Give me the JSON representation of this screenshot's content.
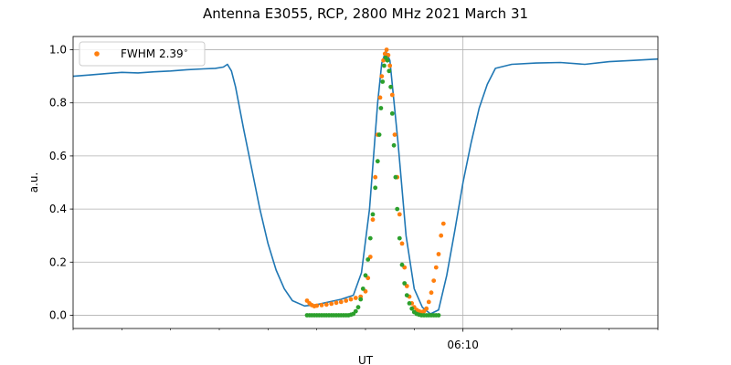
{
  "chart_data": {
    "type": "line",
    "title": "Antenna E3055, RCP, 2800 MHz 2021 March 31",
    "xlabel": "UT",
    "ylabel": "a.u.",
    "xlim": [
      "06:02",
      "06:14"
    ],
    "ylim": [
      -0.05,
      1.05
    ],
    "x_major_ticks": [
      {
        "t": "06:10",
        "label": "06:10"
      }
    ],
    "x_minor_ticks": [
      "06:02",
      "06:03",
      "06:04",
      "06:05",
      "06:06",
      "06:07",
      "06:08",
      "06:09",
      "06:11",
      "06:12",
      "06:13",
      "06:14"
    ],
    "y_ticks": [
      0.0,
      0.2,
      0.4,
      0.6,
      0.8,
      1.0
    ],
    "y_tick_labels": [
      "0.0",
      "0.2",
      "0.4",
      "0.6",
      "0.8",
      "1.0"
    ],
    "grid": true,
    "legend": {
      "position": "top-left",
      "entries": [
        {
          "label": "FWHM 2.39$^\\circ$",
          "display": "FWHM 2.39",
          "superscript": "∘",
          "color": "#ff7f0e",
          "marker": "dot"
        }
      ]
    },
    "series": [
      {
        "color": "#1f77b4",
        "style": "line",
        "points": [
          [
            "06:02:00",
            0.9
          ],
          [
            "06:02:20",
            0.905
          ],
          [
            "06:02:40",
            0.91
          ],
          [
            "06:03:00",
            0.915
          ],
          [
            "06:03:20",
            0.913
          ],
          [
            "06:03:40",
            0.917
          ],
          [
            "06:04:00",
            0.92
          ],
          [
            "06:04:20",
            0.925
          ],
          [
            "06:04:40",
            0.928
          ],
          [
            "06:04:55",
            0.93
          ],
          [
            "06:05:05",
            0.935
          ],
          [
            "06:05:10",
            0.945
          ],
          [
            "06:05:15",
            0.92
          ],
          [
            "06:05:20",
            0.86
          ],
          [
            "06:05:30",
            0.7
          ],
          [
            "06:05:40",
            0.55
          ],
          [
            "06:05:50",
            0.4
          ],
          [
            "06:06:00",
            0.27
          ],
          [
            "06:06:10",
            0.17
          ],
          [
            "06:06:20",
            0.1
          ],
          [
            "06:06:30",
            0.055
          ],
          [
            "06:06:45",
            0.035
          ],
          [
            "06:07:00",
            0.04
          ],
          [
            "06:07:15",
            0.05
          ],
          [
            "06:07:30",
            0.06
          ],
          [
            "06:07:45",
            0.075
          ],
          [
            "06:07:55",
            0.16
          ],
          [
            "06:08:05",
            0.4
          ],
          [
            "06:08:15",
            0.8
          ],
          [
            "06:08:20",
            0.95
          ],
          [
            "06:08:25",
            0.995
          ],
          [
            "06:08:30",
            0.96
          ],
          [
            "06:08:40",
            0.65
          ],
          [
            "06:08:50",
            0.3
          ],
          [
            "06:09:00",
            0.1
          ],
          [
            "06:09:10",
            0.03
          ],
          [
            "06:09:20",
            0.005
          ],
          [
            "06:09:30",
            0.02
          ],
          [
            "06:09:40",
            0.15
          ],
          [
            "06:09:50",
            0.32
          ],
          [
            "06:10:00",
            0.5
          ],
          [
            "06:10:10",
            0.65
          ],
          [
            "06:10:20",
            0.78
          ],
          [
            "06:10:30",
            0.87
          ],
          [
            "06:10:40",
            0.93
          ],
          [
            "06:11:00",
            0.945
          ],
          [
            "06:11:30",
            0.95
          ],
          [
            "06:12:00",
            0.952
          ],
          [
            "06:12:30",
            0.945
          ],
          [
            "06:13:00",
            0.955
          ],
          [
            "06:13:30",
            0.96
          ],
          [
            "06:14:00",
            0.965
          ]
        ]
      },
      {
        "color": "#ff7f0e",
        "style": "dots",
        "points": [
          [
            "06:06:48",
            0.055
          ],
          [
            "06:06:51",
            0.045
          ],
          [
            "06:06:54",
            0.038
          ],
          [
            "06:06:57",
            0.034
          ],
          [
            "06:07:00",
            0.036
          ],
          [
            "06:07:06",
            0.038
          ],
          [
            "06:07:12",
            0.04
          ],
          [
            "06:07:18",
            0.043
          ],
          [
            "06:07:24",
            0.047
          ],
          [
            "06:07:30",
            0.05
          ],
          [
            "06:07:36",
            0.055
          ],
          [
            "06:07:42",
            0.06
          ],
          [
            "06:07:48",
            0.065
          ],
          [
            "06:07:54",
            0.07
          ],
          [
            "06:08:00",
            0.09
          ],
          [
            "06:08:03",
            0.14
          ],
          [
            "06:08:06",
            0.22
          ],
          [
            "06:08:09",
            0.36
          ],
          [
            "06:08:12",
            0.52
          ],
          [
            "06:08:15",
            0.68
          ],
          [
            "06:08:18",
            0.82
          ],
          [
            "06:08:20",
            0.9
          ],
          [
            "06:08:22",
            0.96
          ],
          [
            "06:08:24",
            0.985
          ],
          [
            "06:08:26",
            1.0
          ],
          [
            "06:08:28",
            0.98
          ],
          [
            "06:08:30",
            0.94
          ],
          [
            "06:08:33",
            0.83
          ],
          [
            "06:08:36",
            0.68
          ],
          [
            "06:08:39",
            0.52
          ],
          [
            "06:08:42",
            0.38
          ],
          [
            "06:08:45",
            0.27
          ],
          [
            "06:08:48",
            0.18
          ],
          [
            "06:08:51",
            0.11
          ],
          [
            "06:08:54",
            0.07
          ],
          [
            "06:08:57",
            0.045
          ],
          [
            "06:09:00",
            0.03
          ],
          [
            "06:09:03",
            0.02
          ],
          [
            "06:09:06",
            0.015
          ],
          [
            "06:09:09",
            0.012
          ],
          [
            "06:09:12",
            0.015
          ],
          [
            "06:09:15",
            0.025
          ],
          [
            "06:09:18",
            0.05
          ],
          [
            "06:09:21",
            0.085
          ],
          [
            "06:09:24",
            0.13
          ],
          [
            "06:09:27",
            0.18
          ],
          [
            "06:09:30",
            0.23
          ],
          [
            "06:09:33",
            0.3
          ],
          [
            "06:09:36",
            0.345
          ]
        ]
      },
      {
        "color": "#2ca02c",
        "style": "dots",
        "points": [
          [
            "06:06:48",
            0.0
          ],
          [
            "06:06:51",
            0.0
          ],
          [
            "06:06:54",
            0.0
          ],
          [
            "06:06:57",
            0.0
          ],
          [
            "06:07:00",
            0.0
          ],
          [
            "06:07:03",
            0.0
          ],
          [
            "06:07:06",
            0.0
          ],
          [
            "06:07:09",
            0.0
          ],
          [
            "06:07:12",
            0.0
          ],
          [
            "06:07:15",
            0.0
          ],
          [
            "06:07:18",
            0.0
          ],
          [
            "06:07:21",
            0.0
          ],
          [
            "06:07:24",
            0.0
          ],
          [
            "06:07:27",
            0.0
          ],
          [
            "06:07:30",
            0.0
          ],
          [
            "06:07:33",
            0.0
          ],
          [
            "06:07:36",
            0.0
          ],
          [
            "06:07:39",
            0.0
          ],
          [
            "06:07:42",
            0.002
          ],
          [
            "06:07:45",
            0.005
          ],
          [
            "06:07:48",
            0.015
          ],
          [
            "06:07:51",
            0.03
          ],
          [
            "06:07:54",
            0.06
          ],
          [
            "06:07:57",
            0.1
          ],
          [
            "06:08:00",
            0.15
          ],
          [
            "06:08:03",
            0.21
          ],
          [
            "06:08:06",
            0.29
          ],
          [
            "06:08:09",
            0.38
          ],
          [
            "06:08:12",
            0.48
          ],
          [
            "06:08:15",
            0.58
          ],
          [
            "06:08:17",
            0.68
          ],
          [
            "06:08:19",
            0.78
          ],
          [
            "06:08:21",
            0.88
          ],
          [
            "06:08:23",
            0.94
          ],
          [
            "06:08:25",
            0.97
          ],
          [
            "06:08:27",
            0.96
          ],
          [
            "06:08:29",
            0.92
          ],
          [
            "06:08:31",
            0.86
          ],
          [
            "06:08:33",
            0.76
          ],
          [
            "06:08:35",
            0.64
          ],
          [
            "06:08:37",
            0.52
          ],
          [
            "06:08:39",
            0.4
          ],
          [
            "06:08:42",
            0.29
          ],
          [
            "06:08:45",
            0.19
          ],
          [
            "06:08:48",
            0.12
          ],
          [
            "06:08:51",
            0.075
          ],
          [
            "06:08:54",
            0.045
          ],
          [
            "06:08:57",
            0.025
          ],
          [
            "06:09:00",
            0.012
          ],
          [
            "06:09:03",
            0.005
          ],
          [
            "06:09:06",
            0.002
          ],
          [
            "06:09:09",
            0.0
          ],
          [
            "06:09:12",
            0.0
          ],
          [
            "06:09:15",
            0.0
          ],
          [
            "06:09:18",
            0.0
          ],
          [
            "06:09:21",
            0.0
          ],
          [
            "06:09:24",
            0.0
          ],
          [
            "06:09:27",
            0.0
          ],
          [
            "06:09:30",
            0.0
          ]
        ]
      }
    ]
  }
}
